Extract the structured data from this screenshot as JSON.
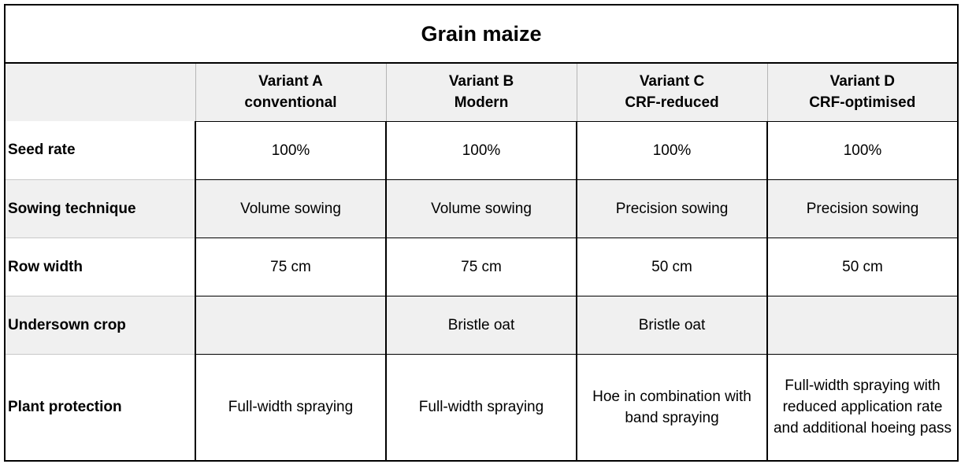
{
  "table": {
    "title": "Grain maize",
    "variants": [
      {
        "name": "Variant A",
        "subtitle": "conventional"
      },
      {
        "name": "Variant B",
        "subtitle": "Modern"
      },
      {
        "name": "Variant C",
        "subtitle": "CRF-reduced"
      },
      {
        "name": "Variant D",
        "subtitle": "CRF-optimised"
      }
    ],
    "rows": [
      {
        "label": "Seed rate",
        "values": [
          "100%",
          "100%",
          "100%",
          "100%"
        ]
      },
      {
        "label": "Sowing technique",
        "values": [
          "Volume sowing",
          "Volume sowing",
          "Precision sowing",
          "Precision sowing"
        ]
      },
      {
        "label": "Row width",
        "values": [
          "75 cm",
          "75 cm",
          "50 cm",
          "50 cm"
        ]
      },
      {
        "label": "Undersown crop",
        "values": [
          "",
          "Bristle oat",
          "Bristle oat",
          ""
        ]
      },
      {
        "label": "Plant protection",
        "values": [
          "Full-width spraying",
          "Full-width spraying",
          "Hoe in combination with band spraying",
          "Full-width spraying with reduced application rate and additional hoeing pass"
        ]
      }
    ]
  },
  "colors": {
    "header_shade": "#f0f0f0",
    "border": "#000000",
    "text": "#000000"
  }
}
